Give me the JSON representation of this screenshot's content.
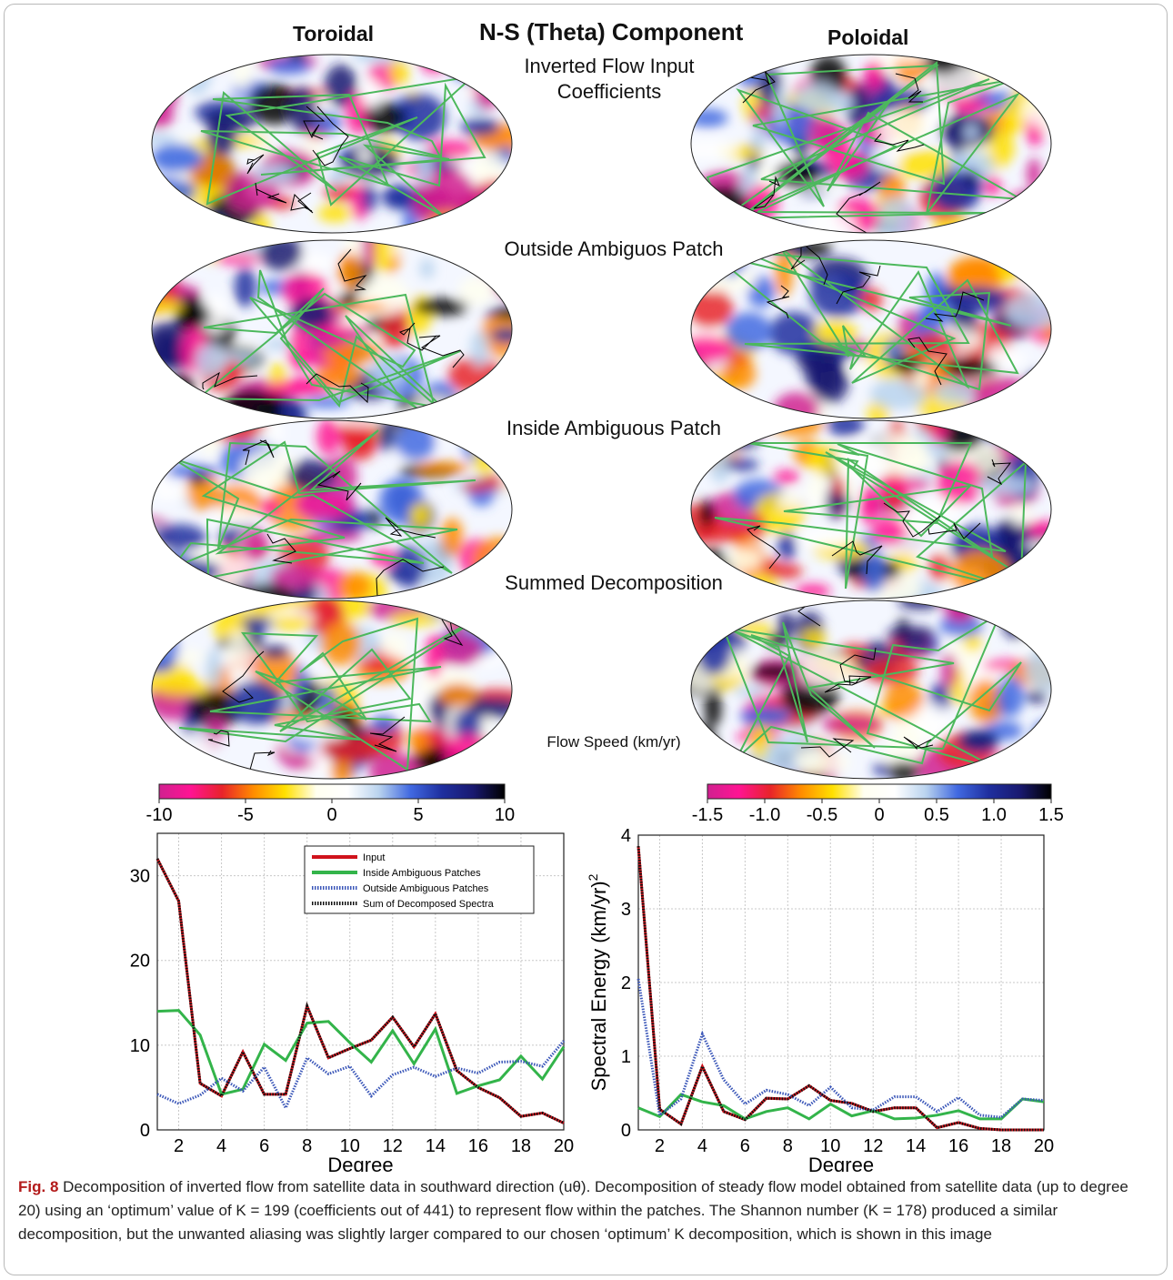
{
  "figure": {
    "title": "N-S (Theta) Component",
    "col_left": "Toroidal",
    "col_right": "Poloidal",
    "row_labels": [
      "Inverted Flow  Input",
      "Coefficients",
      "Outside Ambiguos Patch",
      "Inside Ambiguous Patch",
      "Summed Decomposition"
    ],
    "colorbar_title": "Flow Speed (km/yr)",
    "colorbar_left_ticks": [
      "-10",
      "-5",
      "0",
      "5",
      "10"
    ],
    "colorbar_right_ticks": [
      "-1.5",
      "-1.0",
      "-0.5",
      "0",
      "0.5",
      "1.0",
      "1.5"
    ],
    "colormap": [
      "#d02090",
      "#ff1493",
      "#e8232a",
      "#ff8c00",
      "#ffe000",
      "#fffff0",
      "#ffffff",
      "#b9d3ee",
      "#4169e1",
      "#1f2f9f",
      "#191970",
      "#000000"
    ]
  },
  "chart_data": [
    {
      "type": "line",
      "xlabel": "Degree",
      "ylabel": "",
      "xlim": [
        1,
        20
      ],
      "ylim": [
        0,
        35
      ],
      "xticks": [
        "2",
        "4",
        "6",
        "8",
        "10",
        "12",
        "14",
        "16",
        "18",
        "20"
      ],
      "yticks": [
        "0",
        "10",
        "20",
        "30"
      ],
      "grid": true,
      "legend_position": "top-right",
      "x": [
        1,
        2,
        3,
        4,
        5,
        6,
        7,
        8,
        9,
        10,
        11,
        12,
        13,
        14,
        15,
        16,
        17,
        18,
        19,
        20
      ],
      "series": [
        {
          "name": "Input",
          "color": "#d0121b",
          "style": "solid",
          "values": [
            32,
            27,
            5.5,
            4,
            9.2,
            4.2,
            4.2,
            14.6,
            8.5,
            9.6,
            10.6,
            13.3,
            9.8,
            13.7,
            7,
            5,
            3.8,
            1.6,
            2,
            0.8
          ]
        },
        {
          "name": "Inside Ambiguous Patches",
          "color": "#33b44a",
          "style": "solid",
          "values": [
            14,
            14.1,
            11.2,
            4.2,
            4.8,
            10.1,
            8.2,
            12.6,
            12.8,
            10.3,
            8,
            11.7,
            7.8,
            11.9,
            4.3,
            5.2,
            5.9,
            8.7,
            6,
            9.8
          ]
        },
        {
          "name": "Outside Ambiguous Patches",
          "color": "#3a56b8",
          "style": "dotted",
          "values": [
            4.2,
            3.1,
            4.1,
            6.1,
            4.6,
            7.4,
            2.6,
            8.5,
            6.6,
            7.5,
            4,
            6.5,
            7.4,
            6.3,
            7.3,
            6.7,
            8,
            8.1,
            7.5,
            10.5
          ]
        },
        {
          "name": "Sum of Decomposed Spectra",
          "color": "#111111",
          "style": "dotted",
          "values": [
            32,
            27,
            5.5,
            4,
            9.2,
            4.2,
            4.2,
            14.6,
            8.5,
            9.6,
            10.6,
            13.3,
            9.8,
            13.7,
            7,
            5,
            3.8,
            1.6,
            2,
            0.8
          ]
        }
      ]
    },
    {
      "type": "line",
      "xlabel": "Degree",
      "ylabel": "Spectral Energy  (km/yr)",
      "ylabel_sup": "2",
      "xlim": [
        1,
        20
      ],
      "ylim": [
        0,
        4
      ],
      "xticks": [
        "2",
        "4",
        "6",
        "8",
        "10",
        "12",
        "14",
        "16",
        "18",
        "20"
      ],
      "yticks": [
        "0",
        "1",
        "2",
        "3",
        "4"
      ],
      "grid": true,
      "x": [
        1,
        2,
        3,
        4,
        5,
        6,
        7,
        8,
        9,
        10,
        11,
        12,
        13,
        14,
        15,
        16,
        17,
        18,
        19,
        20
      ],
      "series": [
        {
          "color": "#d0121b",
          "style": "solid",
          "values": [
            3.85,
            0.28,
            0.08,
            0.86,
            0.25,
            0.14,
            0.43,
            0.42,
            0.6,
            0.4,
            0.36,
            0.25,
            0.3,
            0.3,
            0.03,
            0.1,
            0.02,
            0,
            0,
            0
          ]
        },
        {
          "color": "#33b44a",
          "style": "solid",
          "values": [
            0.3,
            0.18,
            0.48,
            0.38,
            0.33,
            0.15,
            0.25,
            0.3,
            0.15,
            0.35,
            0.19,
            0.26,
            0.15,
            0.16,
            0.2,
            0.26,
            0.15,
            0.15,
            0.42,
            0.38
          ]
        },
        {
          "color": "#3a56b8",
          "style": "dotted",
          "values": [
            2.05,
            0.2,
            0.42,
            1.3,
            0.68,
            0.35,
            0.54,
            0.48,
            0.33,
            0.58,
            0.3,
            0.27,
            0.45,
            0.45,
            0.25,
            0.44,
            0.2,
            0.17,
            0.42,
            0.4
          ]
        },
        {
          "color": "#111111",
          "style": "dotted",
          "values": [
            3.85,
            0.28,
            0.08,
            0.86,
            0.25,
            0.14,
            0.43,
            0.42,
            0.6,
            0.4,
            0.36,
            0.25,
            0.3,
            0.3,
            0.03,
            0.1,
            0.02,
            0,
            0,
            0
          ]
        }
      ]
    }
  ],
  "caption": {
    "fig_label": "Fig. 8",
    "text": "  Decomposition of inverted flow from satellite data in southward direction (uθ). Decomposition of steady flow model obtained from satellite data (up to degree 20) using an ‘optimum’ value of K = 199 (coefficients out of 441) to represent flow within the patches. The Shannon number (K = 178) produced a similar decomposition, but the unwanted aliasing was slightly larger compared to our chosen ‘optimum’ K decomposition, which is shown in this image"
  }
}
